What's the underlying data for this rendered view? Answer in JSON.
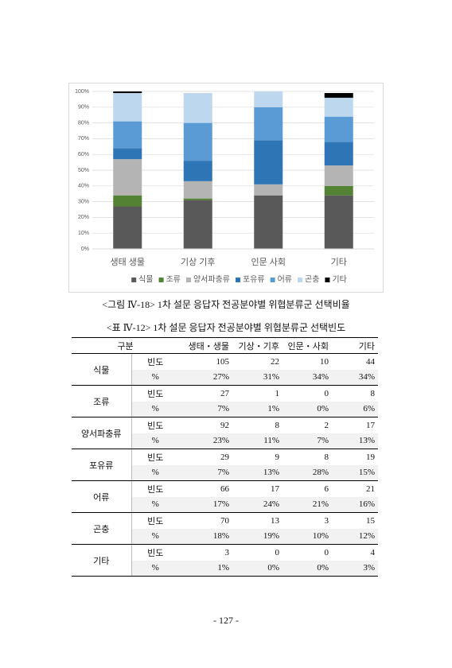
{
  "chart_data": {
    "type": "bar",
    "stacked": true,
    "categories": [
      "생태 생물",
      "기상 기후",
      "인문 사회",
      "기타"
    ],
    "series": [
      {
        "name": "식물",
        "color": "#595959",
        "values": [
          27,
          31,
          34,
          34
        ]
      },
      {
        "name": "조류",
        "color": "#548235",
        "values": [
          7,
          1,
          0,
          6
        ]
      },
      {
        "name": "양서파충류",
        "color": "#b4b4b4",
        "values": [
          23,
          11,
          7,
          13
        ]
      },
      {
        "name": "포유류",
        "color": "#2e75b6",
        "values": [
          7,
          13,
          28,
          15
        ]
      },
      {
        "name": "어류",
        "color": "#5b9bd5",
        "values": [
          17,
          24,
          21,
          16
        ]
      },
      {
        "name": "곤충",
        "color": "#bdd7ee",
        "values": [
          18,
          19,
          10,
          12
        ]
      },
      {
        "name": "기타",
        "color": "#000000",
        "values": [
          1,
          0,
          0,
          3
        ]
      }
    ],
    "ylim": [
      0,
      100
    ],
    "yticks": [
      {
        "value": 0,
        "label": "0%"
      },
      {
        "value": 10,
        "label": "10%"
      },
      {
        "value": 20,
        "label": "20%"
      },
      {
        "value": 30,
        "label": "30%"
      },
      {
        "value": 40,
        "label": "40%"
      },
      {
        "value": 50,
        "label": "50%"
      },
      {
        "value": 60,
        "label": "60%"
      },
      {
        "value": 70,
        "label": "70%"
      },
      {
        "value": 80,
        "label": "80%"
      },
      {
        "value": 90,
        "label": "90%"
      },
      {
        "value": 100,
        "label": "100%"
      }
    ],
    "legend": "bottom"
  },
  "figure_caption": "<그림 Ⅳ-18> 1차 설문 응답자 전공분야별 위협분류군 선택비율",
  "table_caption": "<표 Ⅳ-12> 1차 설문 응답자 전공분야별 위협분류군 선택빈도",
  "table": {
    "header": [
      "구분",
      "생태・생물",
      "기상・기후",
      "인문・사회",
      "기타"
    ],
    "groups": [
      {
        "name": "식물",
        "rows": [
          [
            "빈도",
            "105",
            "22",
            "10",
            "44"
          ],
          [
            "%",
            "27%",
            "31%",
            "34%",
            "34%"
          ]
        ]
      },
      {
        "name": "조류",
        "rows": [
          [
            "빈도",
            "27",
            "1",
            "0",
            "8"
          ],
          [
            "%",
            "7%",
            "1%",
            "0%",
            "6%"
          ]
        ]
      },
      {
        "name": "양서파충류",
        "rows": [
          [
            "빈도",
            "92",
            "8",
            "2",
            "17"
          ],
          [
            "%",
            "23%",
            "11%",
            "7%",
            "13%"
          ]
        ]
      },
      {
        "name": "포유류",
        "rows": [
          [
            "빈도",
            "29",
            "9",
            "8",
            "19"
          ],
          [
            "%",
            "7%",
            "13%",
            "28%",
            "15%"
          ]
        ]
      },
      {
        "name": "어류",
        "rows": [
          [
            "빈도",
            "66",
            "17",
            "6",
            "21"
          ],
          [
            "%",
            "17%",
            "24%",
            "21%",
            "16%"
          ]
        ]
      },
      {
        "name": "곤충",
        "rows": [
          [
            "빈도",
            "70",
            "13",
            "3",
            "15"
          ],
          [
            "%",
            "18%",
            "19%",
            "10%",
            "12%"
          ]
        ]
      },
      {
        "name": "기타",
        "rows": [
          [
            "빈도",
            "3",
            "0",
            "0",
            "4"
          ],
          [
            "%",
            "1%",
            "0%",
            "0%",
            "3%"
          ]
        ]
      }
    ]
  },
  "page_number": "- 127 -"
}
